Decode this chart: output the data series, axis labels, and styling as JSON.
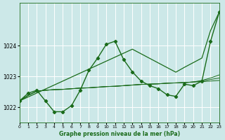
{
  "title": "Graphe pression niveau de la mer (hPa)",
  "bg_color": "#cce8e8",
  "grid_color": "#ffffff",
  "line_color": "#1a6b1a",
  "ylim": [
    1021.5,
    1025.4
  ],
  "xlim": [
    0,
    23
  ],
  "yticks": [
    1022,
    1023,
    1024
  ],
  "xticks": [
    0,
    1,
    2,
    3,
    4,
    5,
    6,
    7,
    8,
    9,
    10,
    11,
    12,
    13,
    14,
    15,
    16,
    17,
    18,
    19,
    20,
    21,
    22,
    23
  ],
  "zigzag": [
    1022.2,
    1022.45,
    1022.55,
    1022.2,
    1021.85,
    1021.85,
    1022.05,
    1022.55,
    1023.2,
    1023.6,
    1024.05,
    1024.15,
    1023.55,
    1023.15,
    1022.85,
    1022.7,
    1022.6,
    1022.4,
    1022.35,
    1022.75,
    1022.7,
    1022.85,
    1024.15,
    1025.1
  ],
  "straight": [
    1022.2,
    1022.33,
    1022.46,
    1022.59,
    1022.72,
    1022.85,
    1022.98,
    1023.11,
    1023.24,
    1023.37,
    1023.5,
    1023.63,
    1023.76,
    1023.89,
    1023.74,
    1023.59,
    1023.44,
    1023.29,
    1023.14,
    1023.3,
    1023.45,
    1023.6,
    1024.5,
    1025.1
  ],
  "flat1": [
    1022.2,
    1022.38,
    1022.52,
    1022.55,
    1022.57,
    1022.58,
    1022.6,
    1022.62,
    1022.63,
    1022.65,
    1022.67,
    1022.68,
    1022.7,
    1022.72,
    1022.74,
    1022.75,
    1022.76,
    1022.78,
    1022.79,
    1022.8,
    1022.82,
    1022.83,
    1022.85,
    1022.87
  ],
  "flat2": [
    1022.2,
    1022.38,
    1022.52,
    1022.55,
    1022.57,
    1022.58,
    1022.6,
    1022.62,
    1022.63,
    1022.65,
    1022.67,
    1022.68,
    1022.7,
    1022.72,
    1022.74,
    1022.75,
    1022.76,
    1022.78,
    1022.79,
    1022.8,
    1022.82,
    1022.85,
    1022.9,
    1022.95
  ],
  "flat3": [
    1022.2,
    1022.38,
    1022.52,
    1022.55,
    1022.57,
    1022.58,
    1022.6,
    1022.62,
    1022.63,
    1022.65,
    1022.67,
    1022.68,
    1022.7,
    1022.72,
    1022.74,
    1022.75,
    1022.76,
    1022.78,
    1022.79,
    1022.8,
    1022.82,
    1022.87,
    1022.95,
    1023.05
  ]
}
